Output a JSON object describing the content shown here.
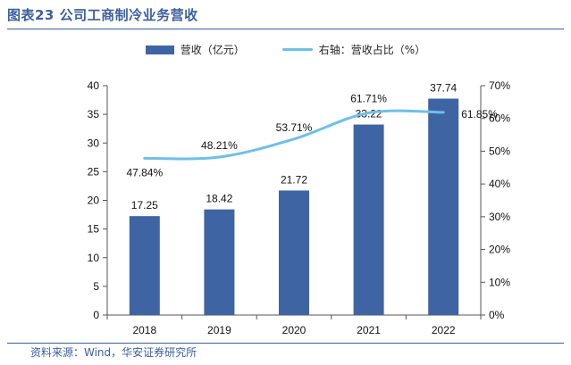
{
  "header": {
    "title": "图表23 公司工商制冷业务营收"
  },
  "legend": {
    "bar_label": "营收（亿元）",
    "line_label": "右轴：营收占比（%）"
  },
  "source": {
    "text": "资料来源：Wind，华安证券研究所"
  },
  "colors": {
    "bar": "#3f64a3",
    "line": "#6fbfe9",
    "title": "#3b5fa0"
  },
  "chart_data": {
    "type": "bar",
    "categories": [
      "2018",
      "2019",
      "2020",
      "2021",
      "2022"
    ],
    "series": [
      {
        "name": "营收（亿元）",
        "type": "bar",
        "axis": "left",
        "values": [
          17.25,
          18.42,
          21.72,
          33.22,
          37.74
        ],
        "labels": [
          "17.25",
          "18.42",
          "21.72",
          "33.22",
          "37.74"
        ]
      },
      {
        "name": "右轴：营收占比（%）",
        "type": "line",
        "axis": "right",
        "values": [
          47.84,
          48.21,
          53.71,
          61.71,
          61.85
        ],
        "labels": [
          "47.84%",
          "48.21%",
          "53.71%",
          "61.71%",
          "61.85%"
        ]
      }
    ],
    "y_left": {
      "range": [
        0,
        40
      ],
      "ticks": [
        "0",
        "5",
        "10",
        "15",
        "20",
        "25",
        "30",
        "35",
        "40"
      ]
    },
    "y_right": {
      "range": [
        0,
        70
      ],
      "ticks": [
        "0%",
        "10%",
        "20%",
        "30%",
        "40%",
        "50%",
        "60%",
        "70%"
      ]
    },
    "grid": false,
    "legend_position": "top"
  }
}
